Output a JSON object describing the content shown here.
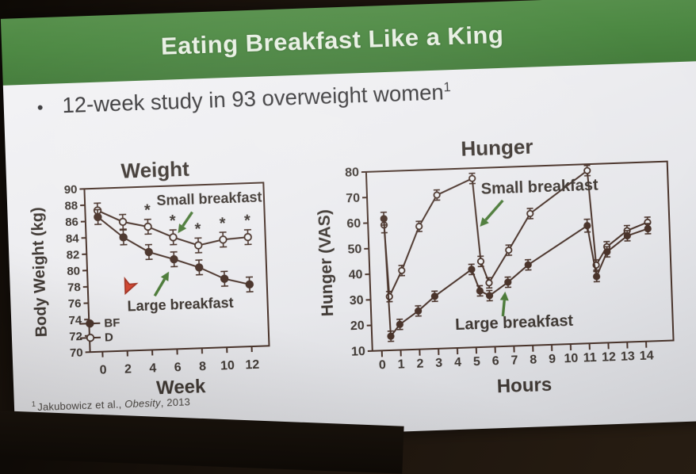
{
  "slide": {
    "banner": {
      "title": "Eating Breakfast Like a King"
    },
    "bullet": {
      "marker": "•",
      "text": "12-week study in 93 overweight women",
      "superscript": "1"
    },
    "footnote": {
      "superscript": "1",
      "pre": "Jakubowicz et al., ",
      "italic": "Obesity",
      "post": ", 2013"
    }
  },
  "colors": {
    "ink": "#4a342b",
    "text": "#3f3833",
    "slide_bg": "#eceef0",
    "banner_green": "#4d8943",
    "annotation_arrow": "#4d7c3a",
    "laser_pointer": "#cf3a23"
  },
  "chart_data": [
    {
      "id": "weight",
      "type": "line",
      "title": "Weight",
      "xlabel": "Week",
      "ylabel": "Body Weight (kg)",
      "xlim": [
        -1,
        13.4
      ],
      "ylim": [
        70,
        90
      ],
      "xticks": [
        0,
        2,
        4,
        6,
        8,
        10,
        12
      ],
      "yticks": [
        70,
        72,
        74,
        76,
        78,
        80,
        82,
        84,
        86,
        88,
        90
      ],
      "grid": false,
      "legend_position": "lower-left-inside",
      "series": [
        {
          "name": "D",
          "label": "Small breakfast",
          "marker": "open",
          "x": [
            0,
            2,
            4,
            6,
            8,
            10,
            12
          ],
          "y": [
            87.3,
            85.8,
            85.1,
            83.7,
            82.6,
            83.2,
            83.4
          ],
          "err": [
            0.9,
            0.9,
            0.9,
            0.9,
            0.9,
            0.9,
            0.9
          ]
        },
        {
          "name": "BF",
          "label": "Large breakfast",
          "marker": "filled",
          "x": [
            0,
            2,
            4,
            6,
            8,
            10,
            12
          ],
          "y": [
            86.5,
            83.9,
            82.0,
            81.0,
            79.9,
            78.4,
            77.6
          ],
          "err": [
            0.9,
            0.9,
            0.9,
            0.9,
            0.9,
            0.9,
            0.9
          ]
        }
      ],
      "significance": {
        "symbol": "*",
        "x": [
          4,
          6,
          8,
          10,
          12
        ],
        "series": "D"
      },
      "legend": [
        {
          "label": "BF",
          "marker": "filled"
        },
        {
          "label": "D",
          "marker": "open"
        }
      ],
      "annotations": [
        {
          "text": "Small breakfast"
        },
        {
          "text": "Large breakfast"
        }
      ],
      "pointer": {
        "name": "laser-pointer-arrow"
      }
    },
    {
      "id": "hunger",
      "type": "line",
      "title": "Hunger",
      "xlabel": "Hours",
      "ylabel": "Hunger (VAS)",
      "xlim": [
        -0.5,
        15.45
      ],
      "ylim": [
        10,
        80
      ],
      "xticks": [
        0,
        1,
        2,
        3,
        4,
        5,
        6,
        7,
        8,
        9,
        10,
        11,
        12,
        13,
        14
      ],
      "yticks": [
        10,
        20,
        30,
        40,
        50,
        60,
        70,
        80
      ],
      "grid": false,
      "series": [
        {
          "name": "Small breakfast",
          "label": "Small breakfast",
          "marker": "open",
          "x": [
            0.35,
            0.5,
            1.2,
            2.2,
            3.2,
            5.1,
            5.4,
            5.8,
            6.9,
            8.1,
            11.2,
            11.5,
            12.1,
            13.2,
            14.3
          ],
          "y": [
            59,
            31,
            41,
            58,
            70,
            76,
            43.5,
            35,
            47.5,
            61.5,
            77.5,
            40.5,
            47.5,
            53.5,
            56.5
          ],
          "err": [
            3,
            2,
            2,
            2,
            2,
            2,
            2,
            2,
            2,
            2,
            2,
            2,
            2,
            2,
            2
          ]
        },
        {
          "name": "Large breakfast",
          "label": "Large breakfast",
          "marker": "filled",
          "x": [
            0.35,
            0.5,
            1.0,
            2.0,
            2.9,
            4.9,
            5.3,
            5.8,
            6.8,
            7.9,
            11.1,
            11.5,
            12.1,
            13.2,
            14.3
          ],
          "y": [
            61.5,
            15.5,
            20,
            25,
            30.5,
            40.5,
            32,
            30,
            35,
            41.5,
            56,
            36,
            45.5,
            51.5,
            54
          ],
          "err": [
            2.5,
            2,
            2,
            2,
            2,
            2,
            2,
            2,
            2,
            2,
            2.5,
            2,
            2,
            2,
            2
          ]
        }
      ],
      "annotations": [
        {
          "text": "Small breakfast"
        },
        {
          "text": "Large breakfast"
        }
      ]
    }
  ]
}
